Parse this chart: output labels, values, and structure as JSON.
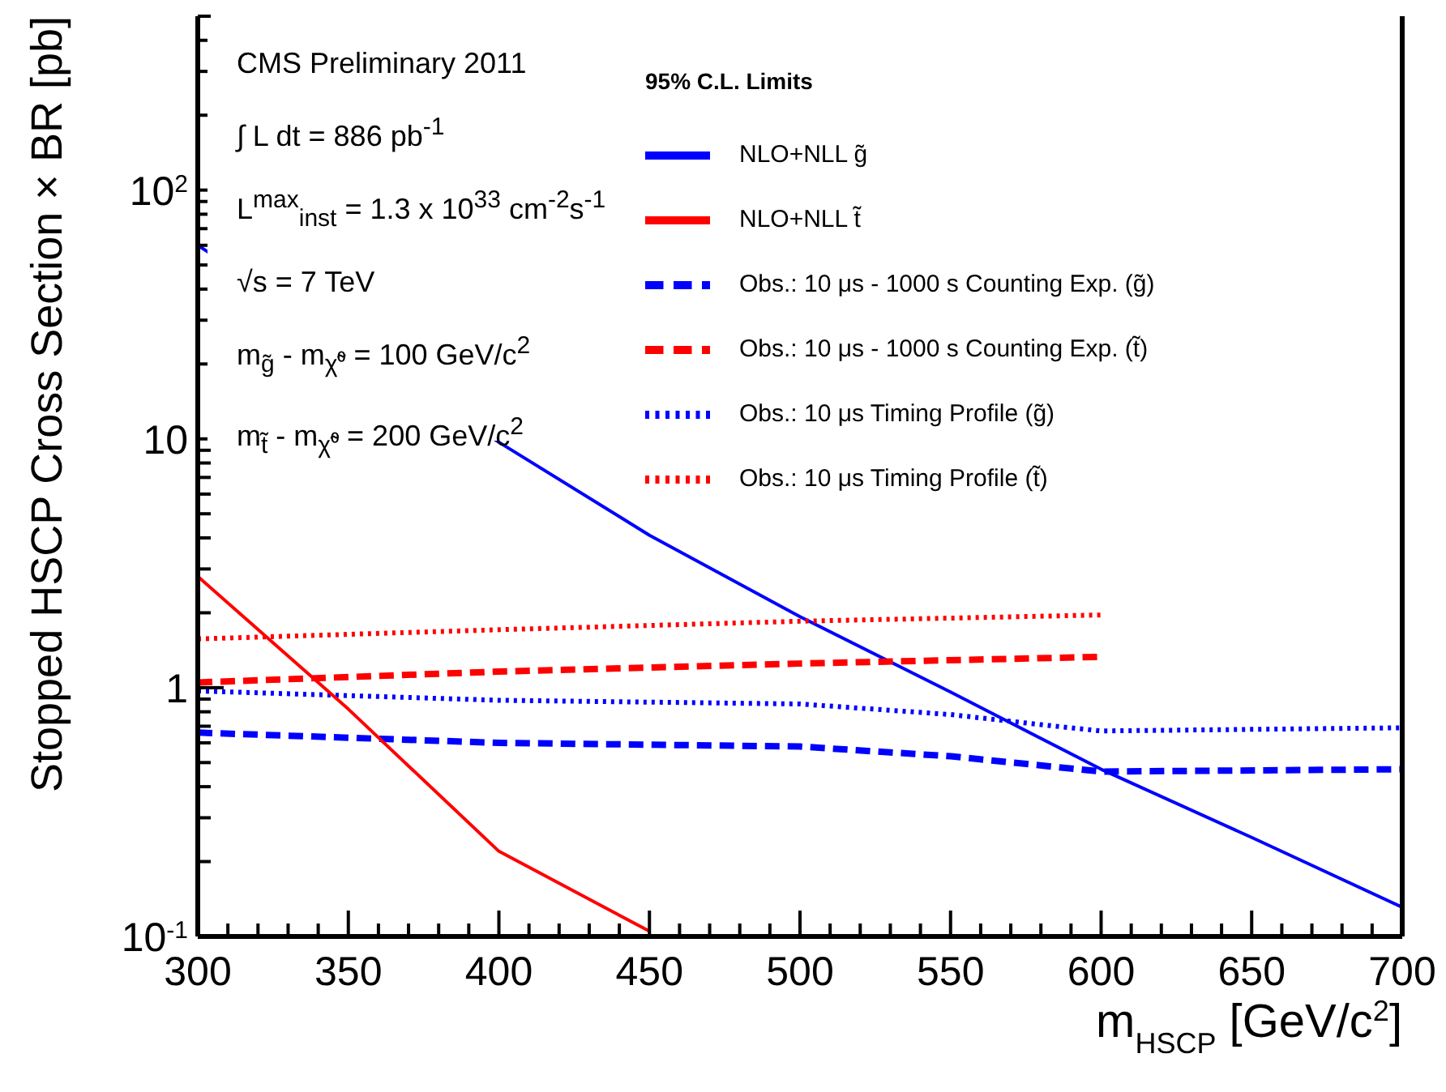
{
  "chart_data": {
    "type": "line",
    "xlabel": "m$_{HSCP}$ [GeV/c$^{2}$]",
    "ylabel": "Stopped HSCP Cross Section × BR [pb]",
    "legend_title": "95% C.L. Limits",
    "legend": "top right",
    "grid": false,
    "log": "y",
    "marker": "none",
    "xlim": [
      300,
      700
    ],
    "xticks": [
      300,
      {
        "value": 310,
        "label": null
      },
      {
        "value": 320,
        "label": null
      },
      {
        "value": 330,
        "label": null
      },
      {
        "value": 340,
        "label": null
      },
      350,
      {
        "value": 360,
        "label": null
      },
      {
        "value": 370,
        "label": null
      },
      {
        "value": 380,
        "label": null
      },
      {
        "value": 390,
        "label": null
      },
      400,
      {
        "value": 410,
        "label": null
      },
      {
        "value": 420,
        "label": null
      },
      {
        "value": 430,
        "label": null
      },
      {
        "value": 440,
        "label": null
      },
      450,
      {
        "value": 460,
        "label": null
      },
      {
        "value": 470,
        "label": null
      },
      {
        "value": 480,
        "label": null
      },
      {
        "value": 490,
        "label": null
      },
      500,
      {
        "value": 510,
        "label": null
      },
      {
        "value": 520,
        "label": null
      },
      {
        "value": 530,
        "label": null
      },
      {
        "value": 540,
        "label": null
      },
      550,
      {
        "value": 560,
        "label": null
      },
      {
        "value": 570,
        "label": null
      },
      {
        "value": 580,
        "label": null
      },
      {
        "value": 590,
        "label": null
      },
      600,
      {
        "value": 610,
        "label": null
      },
      {
        "value": 620,
        "label": null
      },
      {
        "value": 630,
        "label": null
      },
      {
        "value": 640,
        "label": null
      },
      650,
      {
        "value": 660,
        "label": null
      },
      {
        "value": 670,
        "label": null
      },
      {
        "value": 680,
        "label": null
      },
      {
        "value": 690,
        "label": null
      },
      700
    ],
    "ylim": [
      0.1,
      500
    ],
    "yticks": [
      {
        "value": 0.1,
        "label": "10$^{-1}$"
      },
      {
        "value": 0.2,
        "label": null
      },
      {
        "value": 0.3,
        "label": null
      },
      {
        "value": 0.4,
        "label": null
      },
      {
        "value": 0.5,
        "label": null
      },
      {
        "value": 0.6,
        "label": null
      },
      {
        "value": 0.7,
        "label": null
      },
      {
        "value": 0.8,
        "label": null
      },
      {
        "value": 0.9,
        "label": null
      },
      1,
      {
        "value": 2,
        "label": null
      },
      {
        "value": 3,
        "label": null
      },
      {
        "value": 4,
        "label": null
      },
      {
        "value": 5,
        "label": null
      },
      {
        "value": 6,
        "label": null
      },
      {
        "value": 7,
        "label": null
      },
      {
        "value": 8,
        "label": null
      },
      {
        "value": 9,
        "label": null
      },
      10,
      {
        "value": 20,
        "label": null
      },
      {
        "value": 30,
        "label": null
      },
      {
        "value": 40,
        "label": null
      },
      {
        "value": 50,
        "label": null
      },
      {
        "value": 60,
        "label": null
      },
      {
        "value": 70,
        "label": null
      },
      {
        "value": 80,
        "label": null
      },
      {
        "value": 90,
        "label": null
      },
      {
        "value": 100,
        "label": "10$^{2}$"
      },
      {
        "value": 200,
        "label": null
      },
      {
        "value": 300,
        "label": null
      },
      {
        "value": 400,
        "label": null
      },
      {
        "value": 500,
        "label": null
      }
    ],
    "annotations": [
      "CMS Preliminary 2011",
      "∫ L dt = 886 pb$^{-1}$",
      "L$^{max}$$_{inst}$ = 1.3 x 10$^{33}$ cm$^{-2}$s$^{-1}$",
      "√s = 7 TeV",
      "m$_{g̃}$ - m$_{χ̃⁰}$ = 100 GeV/c$^{2}$",
      "m$_{t̃}$ - m$_{χ̃⁰}$ = 200 GeV/c$^{2}$"
    ],
    "series": [
      {
        "name": "NLO+NLL g̃",
        "color": "#0000ff",
        "line_style": "solid",
        "x": [
          300,
          400,
          450,
          500,
          550,
          600,
          650,
          700
        ],
        "values": [
          60,
          9.7,
          4.1,
          1.93,
          0.96,
          0.47,
          0.25,
          0.131
        ]
      },
      {
        "name": "Obs.: 10 μs - 1000 s Counting Exp. (g̃)",
        "color": "#0000ff",
        "line_style": "dashed",
        "x": [
          300,
          400,
          500,
          550,
          600,
          700
        ],
        "values": [
          0.66,
          0.6,
          0.58,
          0.53,
          0.46,
          0.47
        ]
      },
      {
        "name": "Obs.: 10 μs Timing Profile (g̃)",
        "color": "#0000ff",
        "line_style": "dotted",
        "x": [
          300,
          400,
          500,
          550,
          580,
          600,
          700
        ],
        "values": [
          0.97,
          0.89,
          0.86,
          0.78,
          0.71,
          0.67,
          0.69
        ]
      },
      {
        "name": "NLO+NLL t̃",
        "color": "#ff0000",
        "line_style": "solid",
        "x": [
          300,
          350,
          400,
          450
        ],
        "values": [
          2.8,
          0.82,
          0.22,
          0.105
        ]
      },
      {
        "name": "Obs.: 10 μs - 1000 s Counting Exp. (t̃)",
        "color": "#ff0000",
        "line_style": "dashed",
        "x": [
          300,
          400,
          500,
          600
        ],
        "values": [
          1.05,
          1.16,
          1.25,
          1.33
        ]
      },
      {
        "name": "Obs.: 10 μs Timing Profile (t̃)",
        "color": "#ff0000",
        "line_style": "dotted",
        "x": [
          300,
          400,
          500,
          600
        ],
        "values": [
          1.57,
          1.71,
          1.85,
          1.96
        ]
      }
    ]
  }
}
